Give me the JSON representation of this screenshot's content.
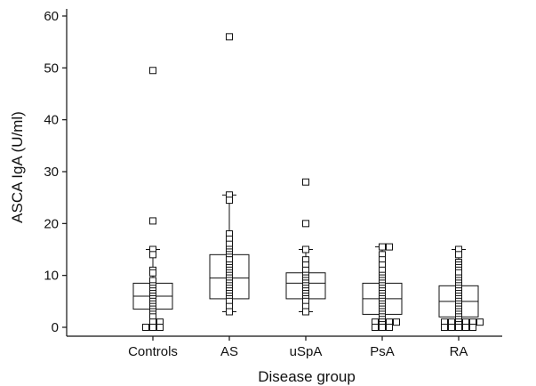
{
  "chart_data": {
    "type": "box",
    "title": "",
    "xlabel": "Disease group",
    "ylabel": "ASCA IgA (U/ml)",
    "ylim": [
      0,
      60
    ],
    "yticks": [
      0,
      10,
      20,
      30,
      40,
      50,
      60
    ],
    "grid": false,
    "categories": [
      "Controls",
      "AS",
      "uSpA",
      "PsA",
      "RA"
    ],
    "boxes": [
      {
        "category": "Controls",
        "q1": 3.5,
        "median": 6,
        "q3": 8.5,
        "whisker_low": 0,
        "whisker_high": 15
      },
      {
        "category": "AS",
        "q1": 5.5,
        "median": 9.5,
        "q3": 14,
        "whisker_low": 3,
        "whisker_high": 25.5
      },
      {
        "category": "uSpA",
        "q1": 5.5,
        "median": 8.5,
        "q3": 10.5,
        "whisker_low": 3,
        "whisker_high": 15
      },
      {
        "category": "PsA",
        "q1": 2.5,
        "median": 5.5,
        "q3": 8.5,
        "whisker_low": 0,
        "whisker_high": 15.5
      },
      {
        "category": "RA",
        "q1": 2,
        "median": 5,
        "q3": 8,
        "whisker_low": 0,
        "whisker_high": 15
      }
    ],
    "points": [
      {
        "category": "Controls",
        "values": [
          49.5,
          20.5,
          15,
          14,
          11,
          10.5,
          9,
          8,
          7.5,
          7,
          6.5,
          6,
          5.5,
          5,
          4.5,
          4,
          3.5,
          3,
          2.5,
          2,
          1,
          1,
          0,
          0,
          0
        ]
      },
      {
        "category": "AS",
        "values": [
          56,
          25.5,
          24.5,
          18,
          17,
          16,
          15,
          14.5,
          14,
          13.5,
          13,
          12,
          11.5,
          11,
          10.5,
          10,
          9.5,
          9,
          8.5,
          8,
          7.5,
          7,
          6.5,
          6,
          5.5,
          5,
          4,
          3
        ]
      },
      {
        "category": "uSpA",
        "values": [
          28,
          20,
          15,
          13,
          12,
          11,
          10,
          9.5,
          9,
          8.5,
          8,
          7.5,
          7,
          6.5,
          6,
          5.5,
          5,
          4,
          3
        ]
      },
      {
        "category": "PsA",
        "values": [
          15.5,
          15.5,
          14,
          13,
          12,
          11,
          10,
          9.5,
          9,
          8.5,
          8,
          7.5,
          7,
          6.5,
          6,
          5.5,
          5,
          4.5,
          4,
          3.5,
          3,
          2.5,
          2,
          1.5,
          1,
          1,
          1,
          1,
          0.5,
          0,
          0,
          0
        ]
      },
      {
        "category": "RA",
        "values": [
          15,
          14,
          12.5,
          12,
          11.5,
          11,
          10.5,
          9.5,
          9,
          8.5,
          8,
          7.5,
          7,
          6.5,
          6,
          5.5,
          5,
          4.5,
          4,
          3.5,
          3,
          2.5,
          2,
          1.5,
          1,
          1,
          1,
          1,
          1,
          1,
          0.5,
          0,
          0,
          0,
          0,
          0
        ]
      }
    ]
  }
}
